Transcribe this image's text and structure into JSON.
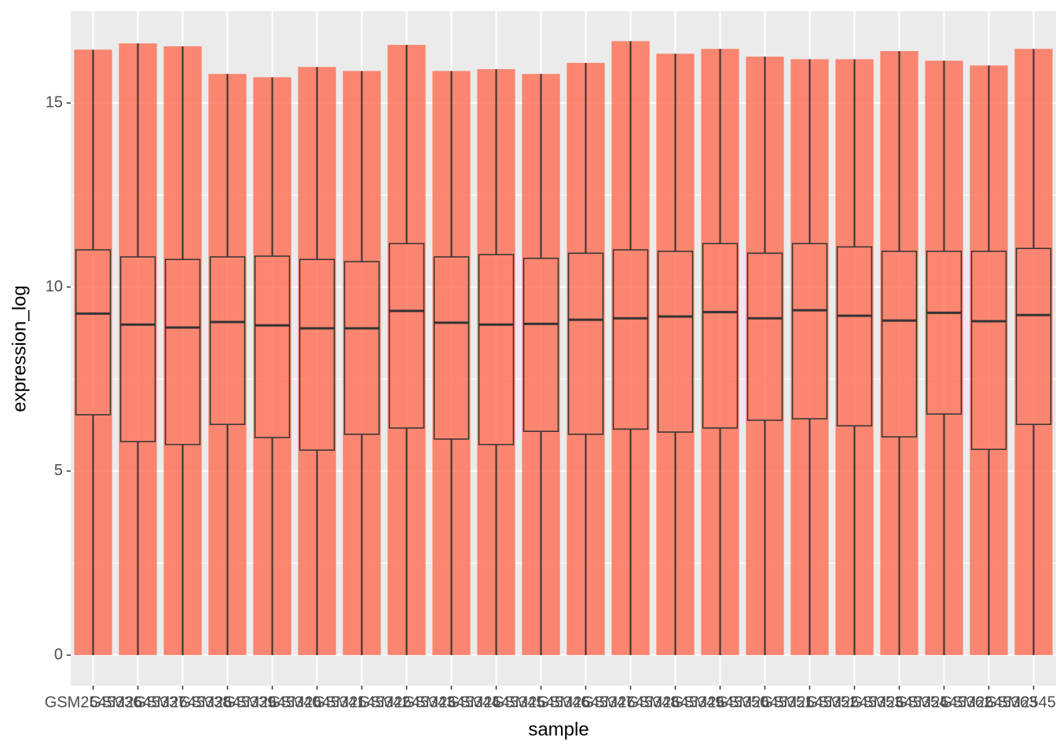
{
  "chart_data": {
    "type": "box",
    "x_label": "sample",
    "y_label": "expression_log",
    "categories": [
      "GSM2545336",
      "GSM2545337",
      "GSM2545338",
      "GSM2545339",
      "GSM2545340",
      "GSM2545341",
      "GSM2545342",
      "GSM2545343",
      "GSM2545344",
      "GSM2545345",
      "GSM2545346",
      "GSM2545347",
      "GSM2545348",
      "GSM2545349",
      "GSM2545350",
      "GSM2545351",
      "GSM2545352",
      "GSM2545353",
      "GSM2545354",
      "GSM2545362",
      "GSM2545363",
      "GSM2545380"
    ],
    "whisker_low": [
      0,
      0,
      0,
      0,
      0,
      0,
      0,
      0,
      0,
      0,
      0,
      0,
      0,
      0,
      0,
      0,
      0,
      0,
      0,
      0,
      0,
      0
    ],
    "q1": [
      6.53,
      5.8,
      5.72,
      6.27,
      5.91,
      5.57,
      6.0,
      6.17,
      5.87,
      5.72,
      6.08,
      6.0,
      6.14,
      6.06,
      6.17,
      6.38,
      6.42,
      6.23,
      5.93,
      6.55,
      5.59,
      6.27
    ],
    "median": [
      9.28,
      8.98,
      8.9,
      9.05,
      8.96,
      8.88,
      8.88,
      9.35,
      9.03,
      8.98,
      9.0,
      9.11,
      9.15,
      9.2,
      9.32,
      9.15,
      9.37,
      9.22,
      9.09,
      9.3,
      9.07,
      9.24
    ],
    "q3": [
      11.01,
      10.82,
      10.75,
      10.82,
      10.84,
      10.75,
      10.69,
      11.18,
      10.82,
      10.88,
      10.78,
      10.92,
      11.01,
      10.97,
      11.18,
      10.92,
      11.18,
      11.09,
      10.97,
      10.97,
      10.97,
      11.05
    ],
    "whisker_high": [
      16.45,
      16.62,
      16.54,
      15.79,
      15.7,
      15.98,
      15.87,
      16.58,
      15.87,
      15.92,
      15.79,
      16.09,
      16.68,
      16.34,
      16.47,
      16.26,
      16.19,
      16.19,
      16.41,
      16.15,
      16.02,
      16.47
    ],
    "point_color": "#ff6347",
    "box_color": "#333333",
    "ylim": [
      -0.83,
      17.5
    ],
    "yticks": [
      0,
      5,
      10,
      15
    ],
    "grid": true
  }
}
